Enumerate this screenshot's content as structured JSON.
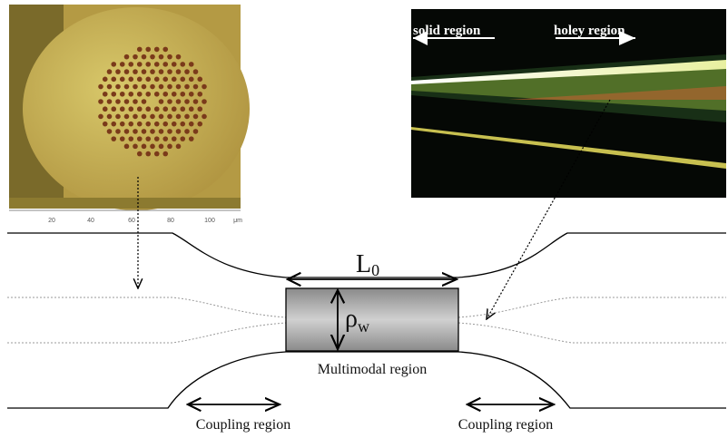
{
  "microscope_axis": {
    "ticks": [
      "20",
      "40",
      "60",
      "80",
      "100"
    ],
    "unit": "μm"
  },
  "photo": {
    "left_label": "solid region",
    "right_label": "holey region"
  },
  "length": {
    "symbol": "L",
    "subscript": "0"
  },
  "radius": {
    "symbol": "ρ",
    "subscript": "w"
  },
  "center_label": "Multimodal region",
  "coupling_labels": [
    "Coupling region",
    "Coupling region"
  ]
}
